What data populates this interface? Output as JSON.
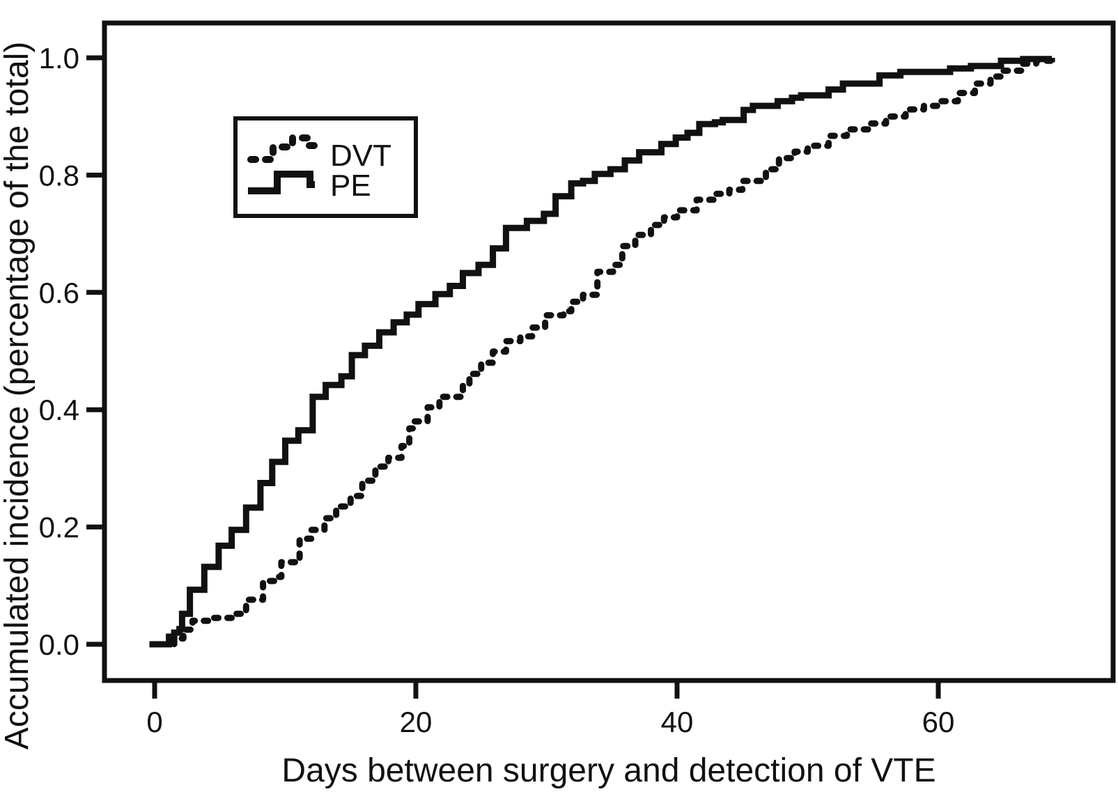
{
  "chart_data": {
    "type": "line",
    "subtype": "step-cumulative-incidence",
    "title": "",
    "xlabel": "Days between surgery and detection of VTE",
    "ylabel": "Accumulated incidence (percentage of the total)",
    "xlim": [
      -3.8,
      73.4
    ],
    "ylim": [
      -0.062,
      1.06
    ],
    "grid": false,
    "x_ticks": {
      "values": [
        0,
        20,
        40,
        60
      ],
      "labels": [
        "0",
        "20",
        "40",
        "60"
      ]
    },
    "y_ticks": {
      "values": [
        0.0,
        0.2,
        0.4,
        0.6,
        0.8,
        1.0
      ],
      "labels": [
        "0.0",
        "0.2",
        "0.4",
        "0.6",
        "0.8",
        "1.0"
      ]
    },
    "legend": {
      "position": "upper-left-inside",
      "entries": [
        {
          "name": "DVT",
          "style": "dotted"
        },
        {
          "name": "PE",
          "style": "solid"
        }
      ]
    },
    "line_color": "#111111",
    "series": [
      {
        "name": "DVT",
        "style": "dotted",
        "points": [
          [
            0.5,
            0
          ],
          [
            1.5,
            0.01
          ],
          [
            2.2,
            0.025
          ],
          [
            2.9,
            0.04
          ],
          [
            4.5,
            0.045
          ],
          [
            5.9,
            0.052
          ],
          [
            7,
            0.076
          ],
          [
            8.3,
            0.108
          ],
          [
            9.2,
            0.115
          ],
          [
            9.7,
            0.14
          ],
          [
            11.1,
            0.18
          ],
          [
            12,
            0.195
          ],
          [
            13,
            0.215
          ],
          [
            13.9,
            0.235
          ],
          [
            15,
            0.253
          ],
          [
            15.9,
            0.279
          ],
          [
            16.9,
            0.303
          ],
          [
            17.9,
            0.318
          ],
          [
            18.9,
            0.338
          ],
          [
            19.5,
            0.368
          ],
          [
            19.9,
            0.38
          ],
          [
            20.9,
            0.404
          ],
          [
            21.8,
            0.422
          ],
          [
            23.6,
            0.443
          ],
          [
            24.1,
            0.461
          ],
          [
            25,
            0.48
          ],
          [
            25.9,
            0.499
          ],
          [
            26.9,
            0.517
          ],
          [
            28,
            0.525
          ],
          [
            28.9,
            0.54
          ],
          [
            29.9,
            0.561
          ],
          [
            31.3,
            0.568
          ],
          [
            31.9,
            0.584
          ],
          [
            32.8,
            0.596
          ],
          [
            33.9,
            0.635
          ],
          [
            35.1,
            0.647
          ],
          [
            35.8,
            0.679
          ],
          [
            36.8,
            0.698
          ],
          [
            38,
            0.715
          ],
          [
            39,
            0.728
          ],
          [
            40,
            0.74
          ],
          [
            41.5,
            0.758
          ],
          [
            43,
            0.768
          ],
          [
            44,
            0.775
          ],
          [
            45,
            0.79
          ],
          [
            46.8,
            0.81
          ],
          [
            47.8,
            0.829
          ],
          [
            49,
            0.84
          ],
          [
            50,
            0.85
          ],
          [
            51.6,
            0.867
          ],
          [
            53,
            0.878
          ],
          [
            54.7,
            0.888
          ],
          [
            56,
            0.9
          ],
          [
            57.5,
            0.912
          ],
          [
            58.9,
            0.918
          ],
          [
            60,
            0.926
          ],
          [
            61.5,
            0.94
          ],
          [
            62.8,
            0.956
          ],
          [
            64,
            0.968
          ],
          [
            65,
            0.978
          ],
          [
            66.4,
            0.99
          ],
          [
            67.5,
            0.995
          ],
          [
            68.7,
            1.0
          ]
        ]
      },
      {
        "name": "PE",
        "style": "solid",
        "points": [
          [
            -0.4,
            0
          ],
          [
            1.1,
            0.013
          ],
          [
            1.5,
            0.02
          ],
          [
            1.9,
            0.026
          ],
          [
            2.1,
            0.052
          ],
          [
            2.7,
            0.093
          ],
          [
            3.8,
            0.132
          ],
          [
            4.9,
            0.168
          ],
          [
            5.9,
            0.195
          ],
          [
            7,
            0.233
          ],
          [
            8.1,
            0.275
          ],
          [
            9,
            0.311
          ],
          [
            10,
            0.347
          ],
          [
            11,
            0.365
          ],
          [
            12.1,
            0.422
          ],
          [
            13.1,
            0.442
          ],
          [
            14.3,
            0.457
          ],
          [
            15.1,
            0.493
          ],
          [
            16.1,
            0.509
          ],
          [
            17.2,
            0.532
          ],
          [
            18.3,
            0.549
          ],
          [
            19.3,
            0.562
          ],
          [
            20.2,
            0.58
          ],
          [
            21.5,
            0.597
          ],
          [
            22.6,
            0.611
          ],
          [
            23.6,
            0.633
          ],
          [
            24.8,
            0.647
          ],
          [
            25.9,
            0.675
          ],
          [
            26.9,
            0.71
          ],
          [
            28.5,
            0.722
          ],
          [
            29.8,
            0.734
          ],
          [
            30.7,
            0.764
          ],
          [
            31.9,
            0.786
          ],
          [
            32.8,
            0.79
          ],
          [
            33.7,
            0.802
          ],
          [
            34.9,
            0.81
          ],
          [
            36,
            0.825
          ],
          [
            37.1,
            0.839
          ],
          [
            38.8,
            0.853
          ],
          [
            39.9,
            0.864
          ],
          [
            40.8,
            0.872
          ],
          [
            41.7,
            0.887
          ],
          [
            42.9,
            0.89
          ],
          [
            43.5,
            0.894
          ],
          [
            45.1,
            0.911
          ],
          [
            45.8,
            0.918
          ],
          [
            47.7,
            0.926
          ],
          [
            48.8,
            0.932
          ],
          [
            49.5,
            0.936
          ],
          [
            51.6,
            0.946
          ],
          [
            52.7,
            0.956
          ],
          [
            55.5,
            0.97
          ],
          [
            57.1,
            0.976
          ],
          [
            60.9,
            0.982
          ],
          [
            62.5,
            0.986
          ],
          [
            64.8,
            0.995
          ],
          [
            66.5,
            0.998
          ],
          [
            68.7,
            1.0
          ]
        ]
      }
    ]
  },
  "legend": {
    "dvt_label": "DVT",
    "pe_label": "PE"
  },
  "axes": {
    "x_title": "Days between surgery and detection of VTE",
    "y_title": "Accumulated incidence (percentage of the total)"
  }
}
